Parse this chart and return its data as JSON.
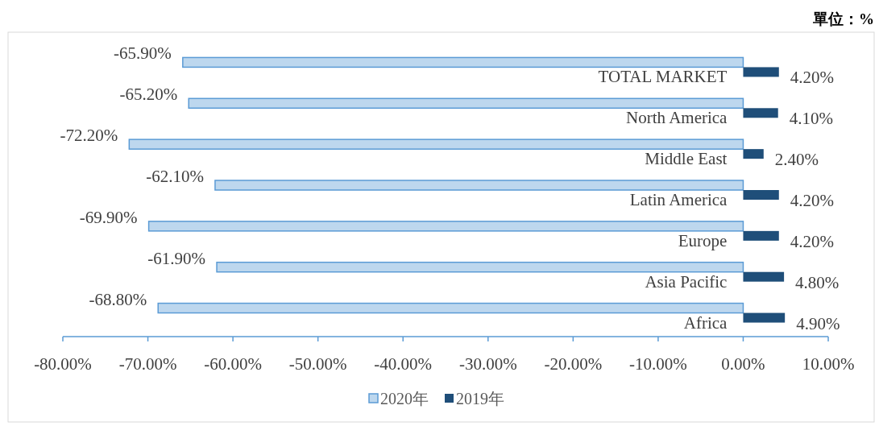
{
  "chart_data": {
    "type": "bar",
    "orientation": "horizontal",
    "annotations": [
      "單位：%"
    ],
    "categories": [
      "TOTAL MARKET",
      "North America",
      "Middle East",
      "Latin America",
      "Europe",
      "Asia Pacific",
      "Africa"
    ],
    "series": [
      {
        "name": "2020年",
        "color": "#bdd7ee",
        "values": [
          -65.9,
          -65.2,
          -72.2,
          -62.1,
          -69.9,
          -61.9,
          -68.8
        ],
        "value_labels": [
          "-65.90%",
          "-65.20%",
          "-72.20%",
          "-62.10%",
          "-69.90%",
          "-61.90%",
          "-68.80%"
        ]
      },
      {
        "name": "2019年",
        "color": "#1f4e79",
        "values": [
          4.2,
          4.1,
          2.4,
          4.2,
          4.2,
          4.8,
          4.9
        ],
        "value_labels": [
          "4.20%",
          "4.10%",
          "2.40%",
          "4.20%",
          "4.20%",
          "4.80%",
          "4.90%"
        ]
      }
    ],
    "xlim": [
      -80,
      10
    ],
    "xticks": [
      {
        "value": -80,
        "label": "-80.00%"
      },
      {
        "value": -70,
        "label": "-70.00%"
      },
      {
        "value": -60,
        "label": "-60.00%"
      },
      {
        "value": -50,
        "label": "-50.00%"
      },
      {
        "value": -40,
        "label": "-40.00%"
      },
      {
        "value": -30,
        "label": "-30.00%"
      },
      {
        "value": -20,
        "label": "-20.00%"
      },
      {
        "value": -10,
        "label": "-10.00%"
      },
      {
        "value": 0,
        "label": "0.00%"
      },
      {
        "value": 10,
        "label": "10.00%"
      }
    ],
    "grid": false,
    "legend": "bottom"
  }
}
